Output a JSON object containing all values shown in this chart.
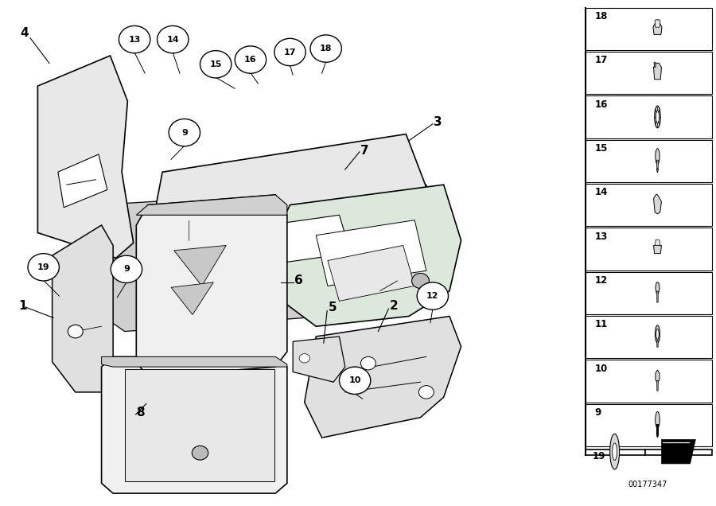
{
  "background": "#ffffff",
  "doc_number": "00177347",
  "side_parts": [
    18,
    17,
    16,
    15,
    14,
    13,
    12,
    11,
    10,
    9
  ]
}
